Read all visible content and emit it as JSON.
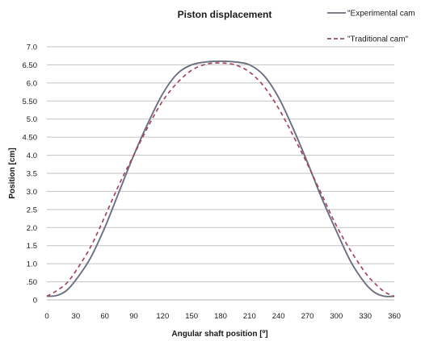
{
  "chart_data": {
    "type": "line",
    "title": "Piston displacement",
    "xlabel": "Angular shaft position [º]",
    "ylabel": "Position [cm]",
    "xlim": [
      0,
      360
    ],
    "ylim": [
      0,
      7.0
    ],
    "x_ticks": [
      "0",
      "30",
      "60",
      "90",
      "120",
      "150",
      "180",
      "210",
      "240",
      "270",
      "300",
      "330",
      "360"
    ],
    "y_ticks": [
      "0",
      ".50",
      "1.0",
      "1.5",
      "2.0",
      "2.5",
      "3.0",
      "3.5",
      "4.0",
      "4.50",
      "5.0",
      "5.50",
      "6.0",
      "6.50",
      "7.0"
    ],
    "grid": "horizontal",
    "legend_position": "top-right",
    "series": [
      {
        "name": "\"Experimental cam",
        "color": "#6b6f80",
        "style": "solid",
        "x": [
          0,
          10,
          20,
          30,
          45,
          60,
          75,
          90,
          105,
          120,
          135,
          150,
          165,
          180,
          195,
          210,
          225,
          240,
          255,
          270,
          285,
          300,
          315,
          330,
          340,
          350,
          360
        ],
        "y": [
          0.1,
          0.12,
          0.25,
          0.55,
          1.15,
          2.0,
          3.0,
          4.0,
          4.9,
          5.7,
          6.25,
          6.5,
          6.58,
          6.6,
          6.58,
          6.5,
          6.2,
          5.6,
          4.75,
          3.8,
          2.8,
          1.9,
          1.05,
          0.45,
          0.2,
          0.1,
          0.1
        ]
      },
      {
        "name": "\"Traditional cam\"",
        "color": "#a0485e",
        "style": "dashed",
        "x": [
          0,
          10,
          20,
          30,
          45,
          60,
          75,
          90,
          105,
          120,
          135,
          150,
          165,
          180,
          195,
          210,
          225,
          240,
          255,
          270,
          285,
          300,
          315,
          330,
          340,
          350,
          360
        ],
        "y": [
          0.1,
          0.25,
          0.45,
          0.8,
          1.45,
          2.3,
          3.2,
          4.0,
          4.8,
          5.5,
          6.0,
          6.35,
          6.52,
          6.55,
          6.5,
          6.3,
          5.9,
          5.3,
          4.55,
          3.75,
          2.9,
          2.05,
          1.35,
          0.75,
          0.45,
          0.22,
          0.1
        ]
      }
    ]
  }
}
